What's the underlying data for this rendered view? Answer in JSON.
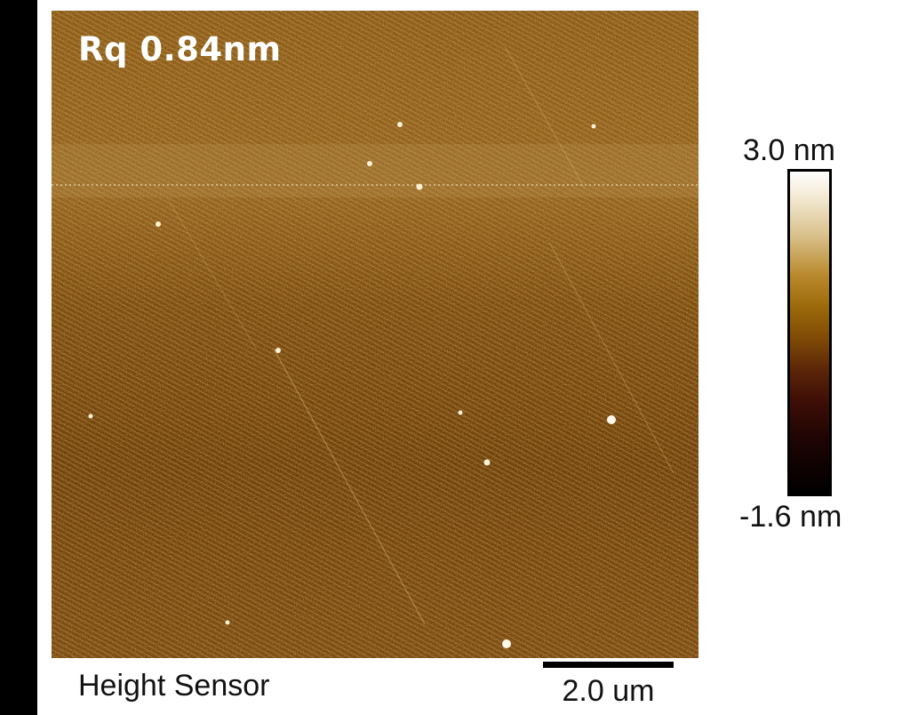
{
  "image": {
    "roughness_label": "Rq 0.84nm",
    "caption": "Height Sensor",
    "scale_bar": {
      "label": "2.0 um"
    },
    "colorbar": {
      "max_label": "3.0 nm",
      "min_label": "-1.6 nm",
      "colors": [
        "#000000",
        "#3c0d06",
        "#7e4a06",
        "#b98a2e",
        "#ffffff"
      ]
    }
  },
  "colors": {
    "background": "#000000",
    "panel": "#ffffff",
    "surface_base": "#7a4a0c"
  }
}
